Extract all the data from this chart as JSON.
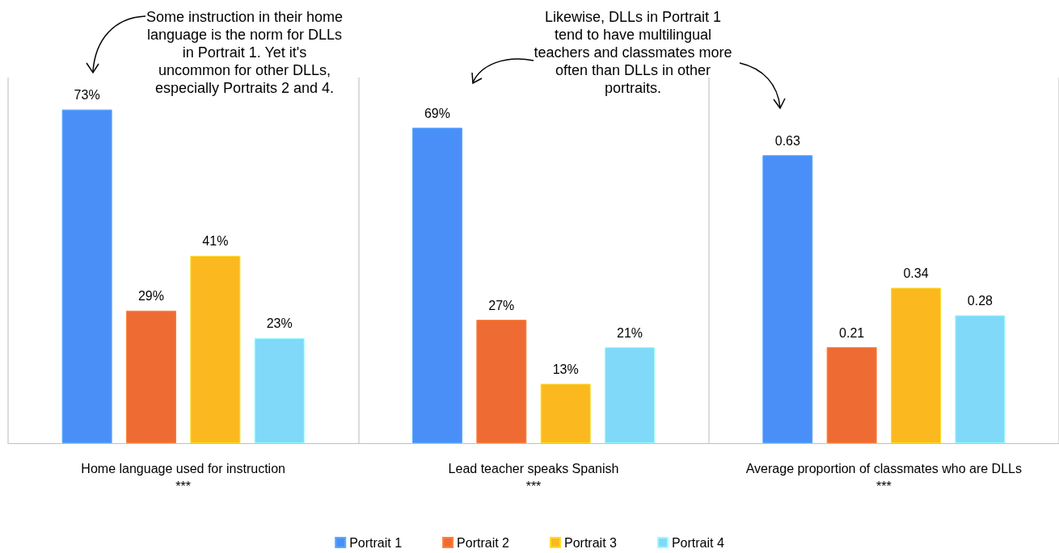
{
  "chart_data": {
    "type": "bar",
    "categories": [
      "Home language used for instruction\n***",
      "Lead teacher speaks Spanish\n***",
      "Average proportion of classmates who are DLLs\n***"
    ],
    "series": [
      {
        "name": "Portrait 1",
        "color": "#4a8ff8",
        "values": [
          0.73,
          0.69,
          0.63
        ],
        "value_labels": [
          "73%",
          "69%",
          "0.63"
        ]
      },
      {
        "name": "Portrait 2",
        "color": "#ee6c34",
        "values": [
          0.29,
          0.27,
          0.21
        ],
        "value_labels": [
          "29%",
          "27%",
          "0.21"
        ]
      },
      {
        "name": "Portrait 3",
        "color": "#fbb91f",
        "values": [
          0.41,
          0.13,
          0.34
        ],
        "value_labels": [
          "41%",
          "13%",
          "0.34"
        ]
      },
      {
        "name": "Portrait 4",
        "color": "#80d9f8",
        "values": [
          0.23,
          0.21,
          0.28
        ],
        "value_labels": [
          "23%",
          "21%",
          "0.28"
        ]
      }
    ],
    "annotations": [
      "Some instruction in their home language is the norm for DLLs in Portrait 1. Yet it's uncommon for other DLLs, especially Portraits 2 and 4.",
      "Likewise, DLLs in Portrait 1 tend to have multilingual teachers and classmates more often than DLLs in other portraits."
    ],
    "grid": "x",
    "legend": "bottom"
  }
}
